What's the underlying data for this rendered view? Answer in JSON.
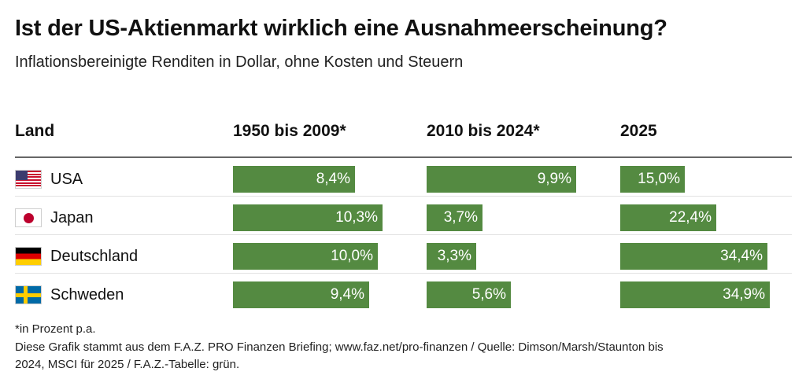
{
  "header": {
    "title": "Ist der US-Aktienmarkt wirklich eine Ausnahmeerscheinung?",
    "subtitle": "Inflationsbereinigte Renditen in Dollar, ohne Kosten und Steuern"
  },
  "chart_data": {
    "type": "table",
    "title": "Ist der US-Aktienmarkt wirklich eine Ausnahmeerscheinung?",
    "subtitle": "Inflationsbereinigte Renditen in Dollar, ohne Kosten und Steuern",
    "columns": [
      "Land",
      "1950 bis 2009*",
      "2010 bis 2024*",
      "2025"
    ],
    "rows": [
      {
        "country": "USA",
        "flag": "us-flag",
        "values": [
          8.4,
          9.9,
          15.0
        ],
        "labels": [
          "8,4%",
          "9,9%",
          "15,0%"
        ]
      },
      {
        "country": "Japan",
        "flag": "japan-flag",
        "values": [
          10.3,
          3.7,
          22.4
        ],
        "labels": [
          "10,3%",
          "3,7%",
          "22,4%"
        ]
      },
      {
        "country": "Deutschland",
        "flag": "germany-flag",
        "values": [
          10.0,
          3.3,
          34.4
        ],
        "labels": [
          "10,0%",
          "3,3%",
          "34,4%"
        ]
      },
      {
        "country": "Schweden",
        "flag": "sweden-flag",
        "values": [
          9.4,
          5.6,
          34.9
        ],
        "labels": [
          "9,4%",
          "5,6%",
          "34,9%"
        ]
      }
    ],
    "unit": "%",
    "bar_color": "#548a41"
  },
  "footer": {
    "note": "*in Prozent p.a.",
    "source_line1": "Diese Grafik stammt aus dem F.A.Z. PRO Finanzen Briefing; www.faz.net/pro-finanzen  /  Quelle: Dimson/Marsh/Staunton bis",
    "source_line2": "2024, MSCI für 2025  /  F.A.Z.-Tabelle: grün."
  }
}
